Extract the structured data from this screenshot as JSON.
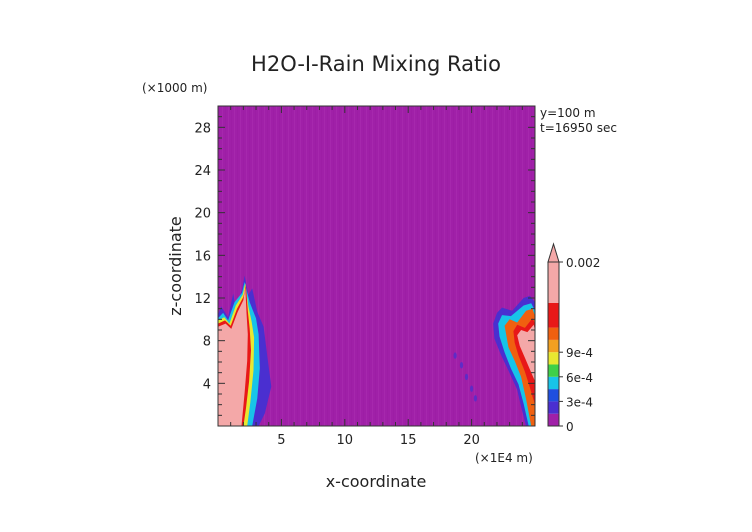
{
  "chart_data": {
    "type": "heatmap",
    "title": "H2O-I-Rain Mixing Ratio",
    "xlabel": "x-coordinate",
    "ylabel": "z-coordinate",
    "x_unit": "(×1E4 m)",
    "y_unit": "(×1000 m)",
    "annotations": [
      "y=100 m",
      "t=16950 sec"
    ],
    "xlim": [
      0,
      25
    ],
    "ylim": [
      0,
      30
    ],
    "x_ticks": [
      5,
      10,
      15,
      20
    ],
    "y_ticks": [
      4,
      8,
      12,
      16,
      20,
      24,
      28
    ],
    "grid": false,
    "colorbar": {
      "labels": [
        {
          "value": 0,
          "text": "0"
        },
        {
          "value": 0.0003,
          "text": "3e-4"
        },
        {
          "value": 0.0006,
          "text": "6e-4"
        },
        {
          "value": 0.0009,
          "text": "9e-4"
        },
        {
          "value": 0.002,
          "text": "0.002"
        }
      ],
      "bands": [
        {
          "from": 0,
          "to": 0.00015,
          "color": "#a020a8"
        },
        {
          "from": 0.00015,
          "to": 0.0003,
          "color": "#4a2fd0"
        },
        {
          "from": 0.0003,
          "to": 0.00045,
          "color": "#1f4fe0"
        },
        {
          "from": 0.00045,
          "to": 0.0006,
          "color": "#18c4e8"
        },
        {
          "from": 0.0006,
          "to": 0.00075,
          "color": "#3fd048"
        },
        {
          "from": 0.00075,
          "to": 0.0009,
          "color": "#e8e830"
        },
        {
          "from": 0.0009,
          "to": 0.00105,
          "color": "#f2a020"
        },
        {
          "from": 0.00105,
          "to": 0.0012,
          "color": "#f06010"
        },
        {
          "from": 0.0012,
          "to": 0.0015,
          "color": "#e81818"
        },
        {
          "from": 0.0015,
          "to": 0.002,
          "color": "#f4a8a8"
        }
      ],
      "overflow_color": "#f4a8a8"
    },
    "background_color": "#a020a8",
    "regions": [
      {
        "label": "left-edge rain column",
        "x_range": [
          0,
          3.5
        ],
        "z_range": [
          0,
          14
        ],
        "max_value_class": "above 0.002"
      },
      {
        "label": "right-edge rain column",
        "x_range": [
          21.5,
          25
        ],
        "z_range": [
          0,
          11
        ],
        "max_value_class": "above 0.002"
      },
      {
        "label": "weak patches",
        "x_range": [
          18,
          20.5
        ],
        "z_range": [
          2,
          7
        ],
        "max_value_class": "3e-4"
      }
    ]
  }
}
